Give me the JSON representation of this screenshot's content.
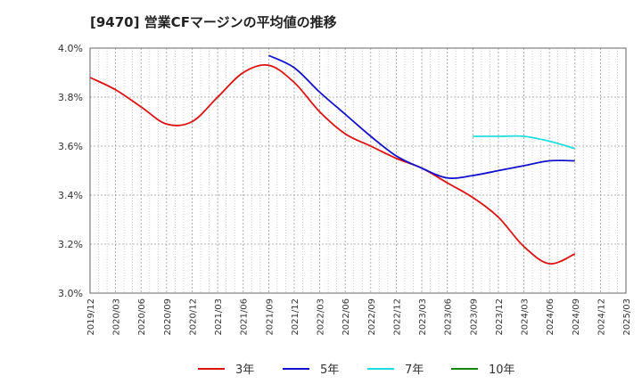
{
  "chart_data": {
    "type": "line",
    "title": "[9470]  営業CFマージンの平均値の推移",
    "xlabel": "",
    "ylabel": "",
    "ylim": [
      3.0,
      4.0
    ],
    "yticks": [
      "3.0%",
      "3.2%",
      "3.4%",
      "3.6%",
      "3.8%",
      "4.0%"
    ],
    "ytick_values": [
      3.0,
      3.2,
      3.4,
      3.6,
      3.8,
      4.0
    ],
    "xticks": [
      "2019/12",
      "2020/03",
      "2020/06",
      "2020/09",
      "2020/12",
      "2021/03",
      "2021/06",
      "2021/09",
      "2021/12",
      "2022/03",
      "2022/06",
      "2022/09",
      "2022/12",
      "2023/03",
      "2023/06",
      "2023/09",
      "2023/12",
      "2024/03",
      "2024/06",
      "2024/09",
      "2024/12",
      "2025/03"
    ],
    "grid": true,
    "legend_position": "bottom",
    "series": [
      {
        "name": "3年",
        "color": "#dd1111",
        "x": [
          "2019/12",
          "2020/03",
          "2020/06",
          "2020/09",
          "2020/12",
          "2021/03",
          "2021/06",
          "2021/09",
          "2021/12",
          "2022/03",
          "2022/06",
          "2022/09",
          "2022/12",
          "2023/03",
          "2023/06",
          "2023/09",
          "2023/12",
          "2024/03",
          "2024/06",
          "2024/09"
        ],
        "values": [
          3.88,
          3.83,
          3.76,
          3.69,
          3.7,
          3.8,
          3.9,
          3.93,
          3.86,
          3.74,
          3.65,
          3.6,
          3.55,
          3.51,
          3.45,
          3.39,
          3.31,
          3.19,
          3.12,
          3.16
        ]
      },
      {
        "name": "5年",
        "color": "#1111cc",
        "x": [
          "2021/09",
          "2021/12",
          "2022/03",
          "2022/06",
          "2022/09",
          "2022/12",
          "2023/03",
          "2023/06",
          "2023/09",
          "2023/12",
          "2024/03",
          "2024/06",
          "2024/09"
        ],
        "values": [
          3.97,
          3.92,
          3.82,
          3.73,
          3.64,
          3.56,
          3.51,
          3.47,
          3.48,
          3.5,
          3.52,
          3.54,
          3.54
        ]
      },
      {
        "name": "7年",
        "color": "#22dddd",
        "x": [
          "2023/09",
          "2023/12",
          "2024/03",
          "2024/06",
          "2024/09"
        ],
        "values": [
          3.64,
          3.64,
          3.64,
          3.62,
          3.59
        ]
      },
      {
        "name": "10年",
        "color": "#118811",
        "x": [],
        "values": []
      }
    ]
  }
}
